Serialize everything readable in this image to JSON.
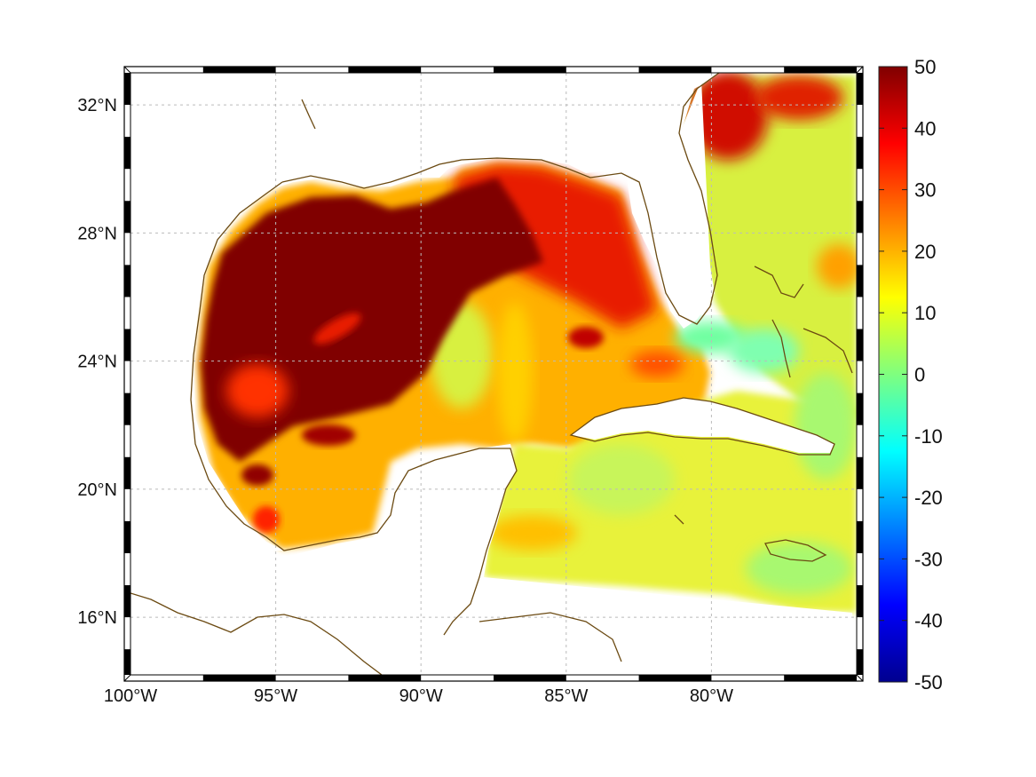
{
  "map": {
    "longitude_range_deg": [
      -100,
      -75
    ],
    "latitude_range_deg": [
      14.2,
      33
    ],
    "field_description": "gridded ocean anomaly field over Gulf of Mexico and Caribbean",
    "grid": "dashed gray, on",
    "lon_ticks": [
      {
        "value": -100,
        "label": "100°W"
      },
      {
        "value": -95,
        "label": "95°W"
      },
      {
        "value": -90,
        "label": "90°W"
      },
      {
        "value": -85,
        "label": "85°W"
      },
      {
        "value": -80,
        "label": "80°W"
      }
    ],
    "lat_ticks": [
      {
        "value": 32,
        "label": "32°N"
      },
      {
        "value": 28,
        "label": "28°N"
      },
      {
        "value": 24,
        "label": "24°N"
      },
      {
        "value": 20,
        "label": "20°N"
      },
      {
        "value": 16,
        "label": "16°N"
      }
    ],
    "coastline_color": "#6b4a12"
  },
  "colorbar": {
    "colormap": "jet",
    "range": [
      -50,
      50
    ],
    "ticks": [
      "50",
      "40",
      "30",
      "20",
      "10",
      "0",
      "-10",
      "-20",
      "-30",
      "-40",
      "-50"
    ],
    "position": "right"
  }
}
